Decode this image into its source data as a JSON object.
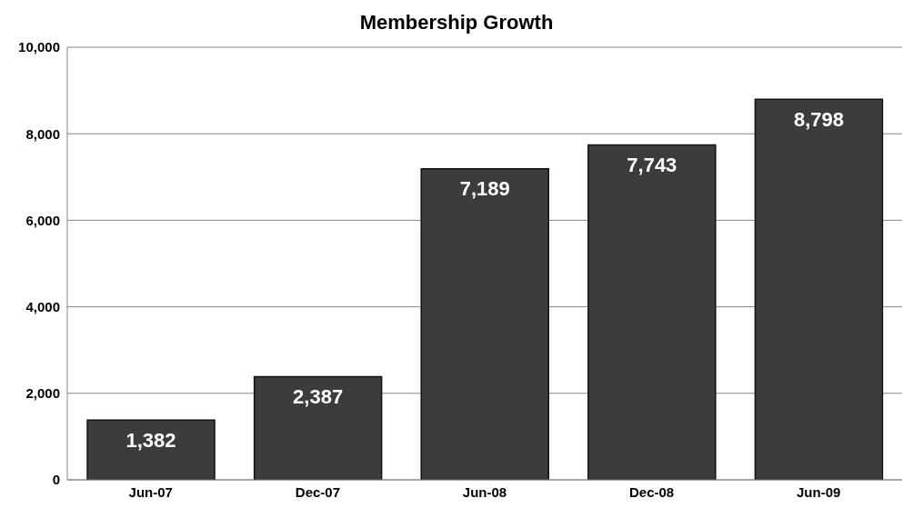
{
  "chart_data": {
    "type": "bar",
    "title": "Membership Growth",
    "categories": [
      "Jun-07",
      "Dec-07",
      "Jun-08",
      "Dec-08",
      "Jun-09"
    ],
    "values": [
      1382,
      2387,
      7189,
      7743,
      8798
    ],
    "color": "#3c3c3c",
    "value_labels": [
      "1,382",
      "2,387",
      "7,189",
      "7,743",
      "8,798"
    ],
    "ylim": [
      0,
      10000
    ],
    "yticks": [
      0,
      {
        "value": 2000,
        "label": "2,000"
      },
      {
        "value": 4000,
        "label": "4,000"
      },
      {
        "value": 6000,
        "label": "6,000"
      },
      {
        "value": 8000,
        "label": "8,000"
      },
      {
        "value": 10000,
        "label": "10,000"
      }
    ],
    "grid": "y"
  }
}
